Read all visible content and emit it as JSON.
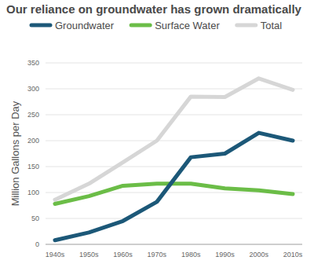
{
  "chart_data": {
    "type": "line",
    "title": "Our reliance on groundwater has grown dramatically",
    "y_label": "Million Gallons per Day",
    "categories": [
      "1940s",
      "1950s",
      "1960s",
      "1970s",
      "1980s",
      "1990s",
      "2000s",
      "2010s"
    ],
    "series": [
      {
        "name": "Groundwater",
        "color": "#1c5878",
        "values": [
          8,
          23,
          45,
          82,
          168,
          175,
          215,
          200
        ]
      },
      {
        "name": "Surface Water",
        "color": "#6bbd47",
        "values": [
          78,
          93,
          113,
          117,
          117,
          108,
          104,
          97
        ]
      },
      {
        "name": "Total",
        "color": "#d6d6d6",
        "values": [
          86,
          117,
          158,
          200,
          285,
          284,
          320,
          298
        ]
      }
    ],
    "ylim": [
      0,
      350
    ],
    "yticks": [
      0,
      50,
      100,
      150,
      200,
      250,
      300,
      350
    ],
    "grid": true,
    "legend": "top-left"
  }
}
